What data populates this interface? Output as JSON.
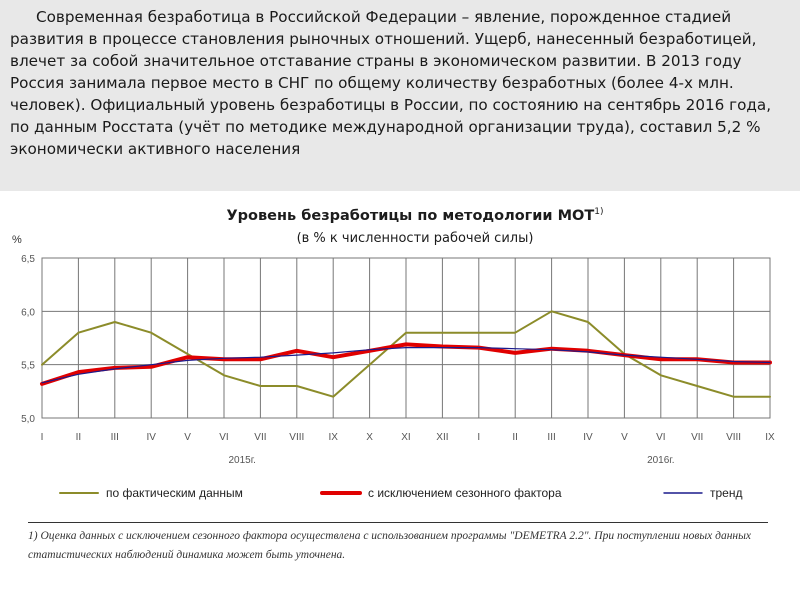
{
  "intro_text": "Современная безработица в Российской Федерации – явление, порожденное стадией развития в процессе становления рыночных отношений. Ущерб, нанесенный безработицей, влечет за собой значительное отставание страны в экономическом развитии. В 2013 году Россия занимала первое место в СНГ по общему количеству безработных (более 4-х млн. человек). Официальный уровень безработицы в России, по состоянию на сентябрь 2016 года, по данным Росстата (учёт по методике международной организации труда), составил 5,2 % экономически активного населения",
  "chart_data": {
    "type": "line",
    "title": "Уровень безработицы по методологии МОТ",
    "title_sup": "1)",
    "subtitle": "(в % к численности рабочей силы)",
    "ylabel": "%",
    "ylim": [
      5.0,
      6.5
    ],
    "yticks": [
      "5,0",
      "5,5",
      "6,0",
      "6,5"
    ],
    "categories": [
      "I",
      "II",
      "III",
      "IV",
      "V",
      "VI",
      "VII",
      "VIII",
      "IX",
      "X",
      "XI",
      "XII",
      "I",
      "II",
      "III",
      "IV",
      "V",
      "VI",
      "VII",
      "VIII",
      "IX"
    ],
    "year_labels": [
      {
        "label": "2015г.",
        "index": 5.5
      },
      {
        "label": "2016г.",
        "index": 17
      }
    ],
    "grid": true,
    "legend_position": "bottom",
    "series": [
      {
        "name": "по фактическим данным",
        "color": "#8c8c2a",
        "width": 2,
        "values": [
          5.5,
          5.8,
          5.9,
          5.8,
          5.6,
          5.4,
          5.3,
          5.3,
          5.2,
          5.5,
          5.8,
          5.8,
          5.8,
          5.8,
          6.0,
          5.9,
          5.6,
          5.4,
          5.3,
          5.2,
          5.2
        ]
      },
      {
        "name": "с исключением сезонного фактора",
        "color": "#e00000",
        "width": 4,
        "values": [
          5.32,
          5.43,
          5.47,
          5.48,
          5.57,
          5.55,
          5.55,
          5.63,
          5.57,
          5.63,
          5.69,
          5.67,
          5.66,
          5.61,
          5.65,
          5.63,
          5.59,
          5.55,
          5.55,
          5.52,
          5.52
        ]
      },
      {
        "name": "тренд",
        "color": "#1a1a8c",
        "width": 1.2,
        "values": [
          5.33,
          5.41,
          5.46,
          5.5,
          5.54,
          5.56,
          5.57,
          5.59,
          5.61,
          5.64,
          5.66,
          5.66,
          5.66,
          5.65,
          5.64,
          5.62,
          5.59,
          5.57,
          5.55,
          5.53,
          5.52
        ]
      }
    ]
  },
  "footnote": "1) Оценка данных с исключением сезонного фактора осуществлена с использованием программы \"DEMETRA 2.2\". При поступлении новых данных статистических наблюдений динамика может быть уточнена."
}
